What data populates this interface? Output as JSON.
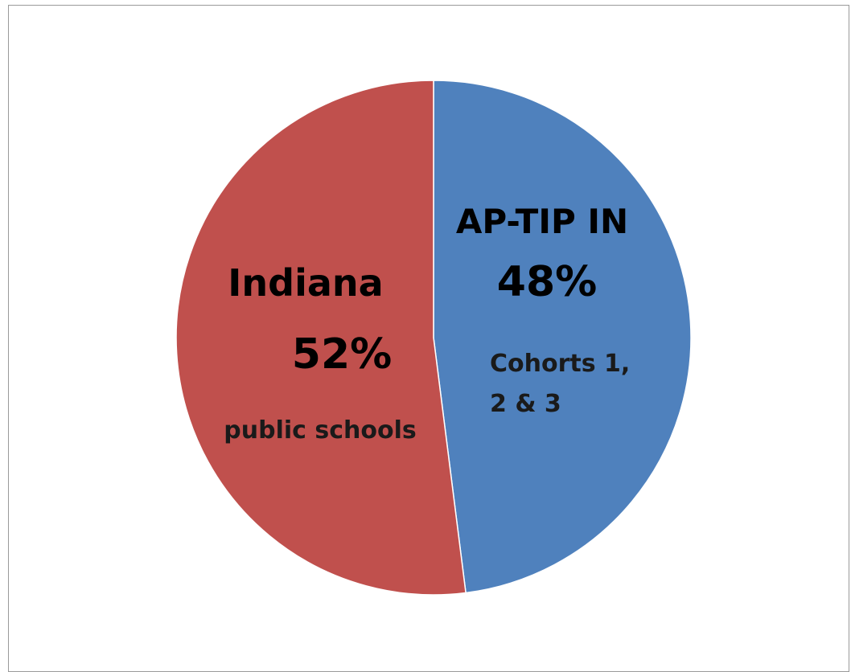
{
  "chart_data": {
    "type": "pie",
    "slices": [
      {
        "label": "AP-TIP IN",
        "value": 48,
        "percent_label": "48%",
        "note_lines": [
          "Cohorts 1,",
          "2 & 3"
        ],
        "color": "#4f81bd"
      },
      {
        "label": "Indiana",
        "value": 52,
        "percent_label": "52%",
        "note_lines": [
          "public schools"
        ],
        "color": "#c0504d"
      }
    ],
    "start_angle_deg": 0,
    "direction": "clockwise",
    "legend": "none"
  }
}
